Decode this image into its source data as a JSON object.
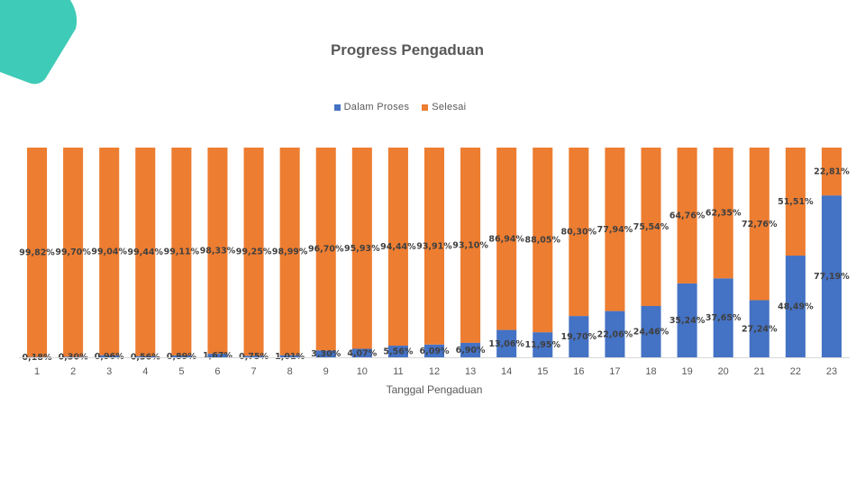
{
  "chart_data": {
    "type": "bar",
    "stacked": "percent",
    "title": "Progress Pengaduan",
    "xlabel": "Tanggal Pengaduan",
    "ylabel": "",
    "ylim": [
      0,
      100
    ],
    "grid": false,
    "legend_position": "top",
    "categories": [
      "1",
      "2",
      "3",
      "4",
      "5",
      "6",
      "7",
      "8",
      "9",
      "10",
      "11",
      "12",
      "13",
      "14",
      "15",
      "16",
      "17",
      "18",
      "19",
      "20",
      "21",
      "22",
      "23"
    ],
    "series": [
      {
        "name": "Dalam Proses",
        "color": "#4472C4",
        "values": [
          0.18,
          0.3,
          0.96,
          0.56,
          0.89,
          1.67,
          0.75,
          1.01,
          3.3,
          4.07,
          5.56,
          6.09,
          6.9,
          13.06,
          11.95,
          19.7,
          22.06,
          24.46,
          35.24,
          37.65,
          27.24,
          48.49,
          77.19
        ],
        "labels": [
          "0,18%",
          "0,30%",
          "0,96%",
          "0,56%",
          "0,89%",
          "1,67%",
          "0,75%",
          "1,01%",
          "3,30%",
          "4,07%",
          "5,56%",
          "6,09%",
          "6,90%",
          "13,06%",
          "11,95%",
          "19,70%",
          "22,06%",
          "24,46%",
          "35,24%",
          "37,65%",
          "27,24%",
          "48,49%",
          "77,19%"
        ]
      },
      {
        "name": "Selesai",
        "color": "#ED7D31",
        "values": [
          99.82,
          99.7,
          99.04,
          99.44,
          99.11,
          98.33,
          99.25,
          98.99,
          96.7,
          95.93,
          94.44,
          93.91,
          93.1,
          86.94,
          88.05,
          80.3,
          77.94,
          75.54,
          64.76,
          62.35,
          72.76,
          51.51,
          22.81
        ],
        "labels": [
          "99,82%",
          "99,70%",
          "99,04%",
          "99,44%",
          "99,11%",
          "98,33%",
          "99,25%",
          "98,99%",
          "96,70%",
          "95,93%",
          "94,44%",
          "93,91%",
          "93,10%",
          "86,94%",
          "88,05%",
          "80,30%",
          "77,94%",
          "75,54%",
          "64,76%",
          "62,35%",
          "72,76%",
          "51,51%",
          "22,81%"
        ]
      }
    ]
  },
  "decoration": {
    "color": "#3ECBB7"
  }
}
